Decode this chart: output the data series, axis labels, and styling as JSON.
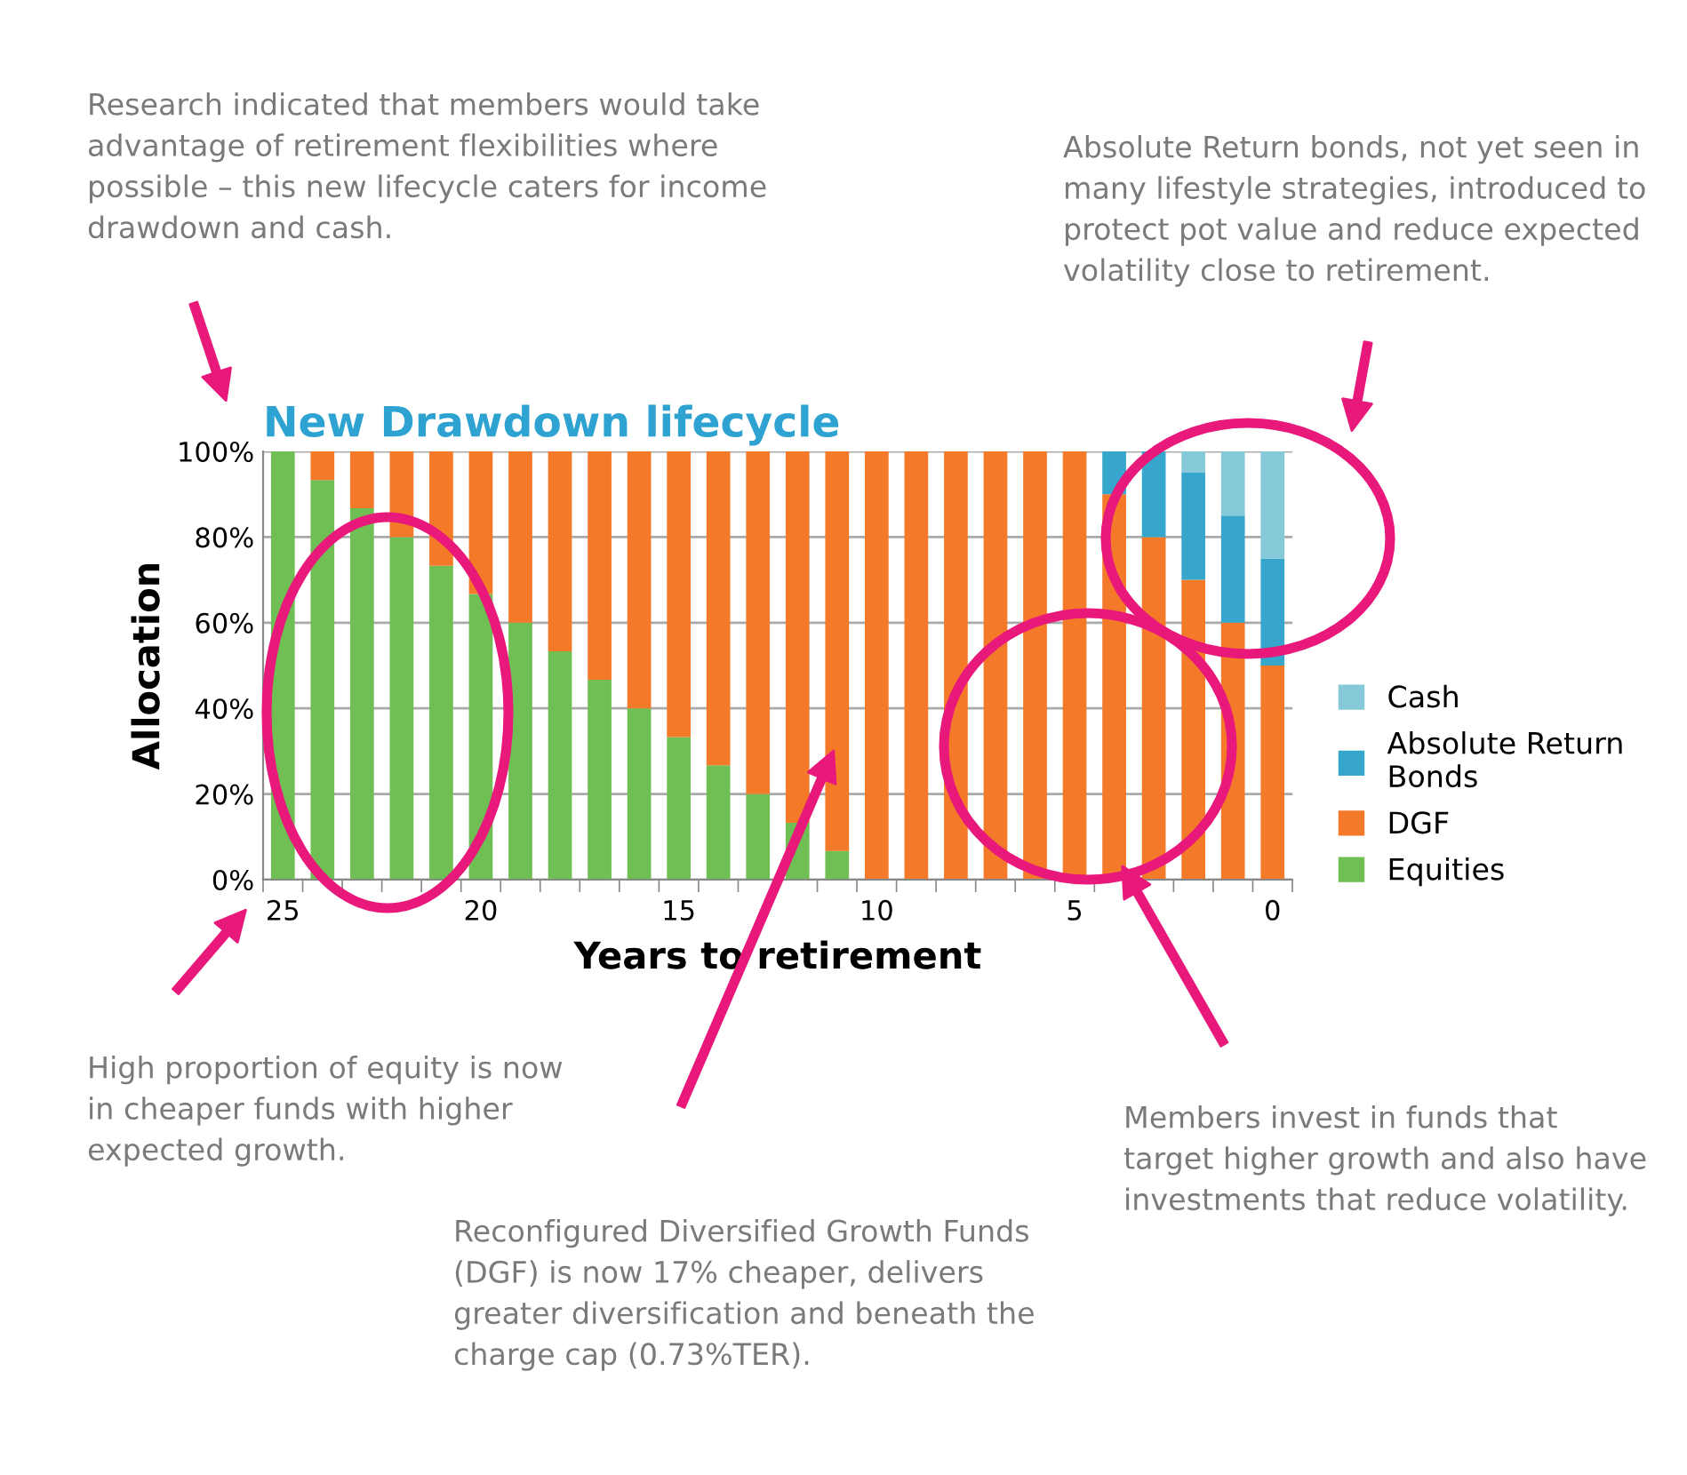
{
  "chart_data": {
    "type": "bar",
    "stacked": true,
    "title": "New Drawdown lifecycle",
    "xlabel": "Years to retirement",
    "ylabel": "Allocation",
    "categories": [
      "25",
      null,
      null,
      null,
      null,
      "20",
      null,
      null,
      null,
      null,
      "15",
      null,
      null,
      null,
      null,
      "10",
      null,
      null,
      null,
      null,
      "5",
      null,
      null,
      null,
      null,
      "0"
    ],
    "series": [
      {
        "name": "Equities",
        "color": "#70bf55",
        "values": [
          100,
          93.3,
          86.7,
          80,
          73.3,
          66.7,
          60,
          53.3,
          46.7,
          40,
          33.3,
          26.7,
          20,
          13.3,
          6.7,
          0,
          0,
          0,
          0,
          0,
          0,
          0,
          0,
          0,
          0,
          0
        ]
      },
      {
        "name": "DGF",
        "color": "#f47a2a",
        "values": [
          0,
          6.7,
          13.3,
          20,
          26.7,
          33.3,
          40,
          46.7,
          53.3,
          60,
          66.7,
          73.3,
          80,
          86.7,
          93.3,
          100,
          100,
          100,
          100,
          100,
          100,
          90,
          80,
          70,
          60,
          50
        ]
      },
      {
        "name": "Absolute Return\nBonds",
        "color": "#36a6cc",
        "values": [
          0,
          0,
          0,
          0,
          0,
          0,
          0,
          0,
          0,
          0,
          0,
          0,
          0,
          0,
          0,
          0,
          0,
          0,
          0,
          0,
          0,
          10,
          20,
          25,
          25,
          25
        ]
      },
      {
        "name": "Cash",
        "color": "#86c9d8",
        "values": [
          0,
          0,
          0,
          0,
          0,
          0,
          0,
          0,
          0,
          0,
          0,
          0,
          0,
          0,
          0,
          0,
          0,
          0,
          0,
          0,
          0,
          0,
          0,
          5,
          15,
          25
        ]
      }
    ],
    "ylim": [
      0,
      100
    ],
    "yticks": [
      {
        "value": 0,
        "label": "0%"
      },
      {
        "value": 20,
        "label": "20%"
      },
      {
        "value": 40,
        "label": "40%"
      },
      {
        "value": 60,
        "label": "60%"
      },
      {
        "value": 80,
        "label": "80%"
      },
      {
        "value": 100,
        "label": "100%"
      }
    ],
    "grid": "y",
    "legend": "right",
    "annotations": [
      "Research indicated that members would take\nadvantage of retirement flexibilities where\npossible – this new lifecycle caters for income\ndrawdown and cash.",
      "Absolute Return bonds, not yet seen in\nmany lifestyle strategies, introduced to\nprotect pot value and reduce expected\nvolatility close to retirement.",
      "High proportion of equity is now\nin cheaper funds with higher\nexpected growth.",
      "Reconfigured Diversified Growth Funds\n(DGF) is now 17% cheaper, delivers\ngreater diversification and beneath the\ncharge cap (0.73%TER).",
      "Members invest in funds that\ntarget higher growth and also have\ninvestments that reduce volatility."
    ]
  }
}
